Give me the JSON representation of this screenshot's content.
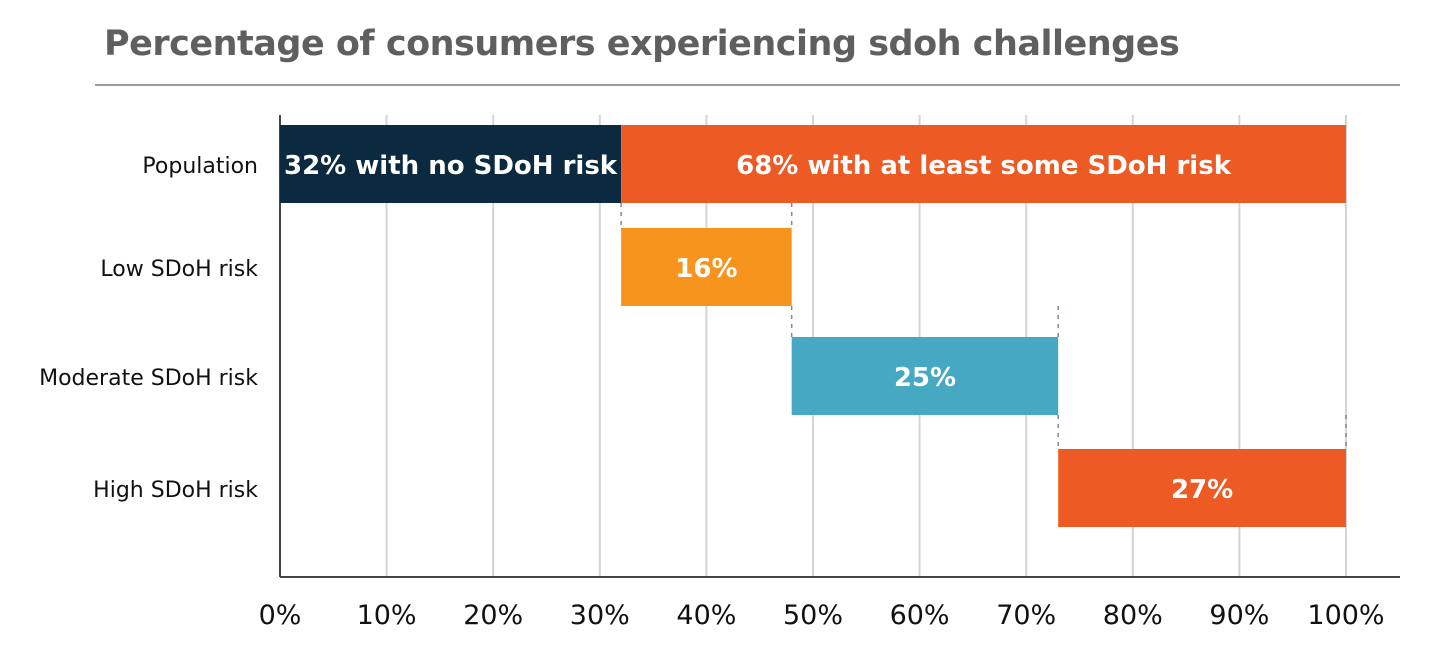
{
  "chart_data": {
    "type": "bar",
    "subtype": "floating-horizontal-bar",
    "title": "Percentage of consumers experiencing sdoh challenges",
    "xlabel": "",
    "ylabel": "",
    "xlim": [
      0,
      100
    ],
    "x_tick_labels": [
      "0%",
      "10%",
      "20%",
      "30%",
      "40%",
      "50%",
      "60%",
      "70%",
      "80%",
      "90%",
      "100%"
    ],
    "grid": "vertical",
    "categories": [
      "Population",
      "Low SDoH risk",
      "Moderate SDoH risk",
      "High SDoH risk"
    ],
    "bars": [
      {
        "category": "Population",
        "start": 0,
        "value": 32,
        "label": "32% with no SDoH risk",
        "color": "#0b2a40"
      },
      {
        "category": "Population",
        "start": 32,
        "value": 68,
        "label": "68% with at least some SDoH risk",
        "color": "#ee5a24"
      },
      {
        "category": "Low SDoH risk",
        "start": 32,
        "value": 16,
        "label": "16%",
        "color": "#f7941d"
      },
      {
        "category": "Moderate SDoH risk",
        "start": 48,
        "value": 25,
        "label": "25%",
        "color": "#46a8c2"
      },
      {
        "category": "High SDoH risk",
        "start": 73,
        "value": 27,
        "label": "27%",
        "color": "#ee5a24"
      }
    ]
  }
}
